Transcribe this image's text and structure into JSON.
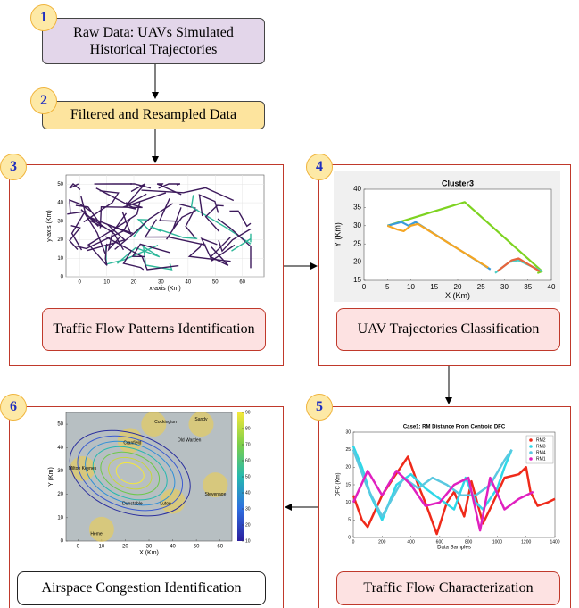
{
  "steps": [
    {
      "number": 1,
      "label": "Raw Data: UAVs Simulated Historical Trajectories"
    },
    {
      "number": 2,
      "label": "Filtered and Resampled Data"
    },
    {
      "number": 3,
      "label": "Traffic Flow Patterns Identification"
    },
    {
      "number": 4,
      "label": "UAV Trajectories Classification"
    },
    {
      "number": 5,
      "label": "Traffic Flow Characterization"
    },
    {
      "number": 6,
      "label": "Airspace Congestion Identification"
    }
  ],
  "charts": {
    "patterns": {
      "type": "line",
      "xlabel": "x-axis  (Km)",
      "ylabel": "y-axis  (Km)",
      "xlim": [
        -5,
        68
      ],
      "xticks": [
        0,
        10,
        20,
        30,
        40,
        50,
        60
      ],
      "ylim": [
        0,
        55
      ],
      "yticks": [
        0,
        10,
        20,
        30,
        40,
        50
      ],
      "grid": true
    },
    "cluster": {
      "type": "line",
      "title": "Cluster3",
      "xlabel": "X (Km)",
      "ylabel": "Y (Km)",
      "xlim": [
        0,
        40
      ],
      "xticks": [
        0,
        5,
        10,
        15,
        20,
        25,
        30,
        35,
        40
      ],
      "ylim": [
        15,
        40
      ],
      "yticks": [
        15,
        20,
        25,
        30,
        35,
        40
      ],
      "grid": false,
      "series": [
        {
          "color": "#7ed321",
          "x": [
            5,
            21.5,
            38,
            37
          ],
          "y": [
            30,
            36.5,
            17.5,
            17
          ]
        },
        {
          "color": "#3a9bdc",
          "x": [
            5,
            8,
            9.5,
            11,
            27
          ],
          "y": [
            30,
            31,
            30,
            31,
            18
          ]
        },
        {
          "color": "#f5a623",
          "x": [
            5,
            7,
            8.5,
            10,
            11.5,
            26.5
          ],
          "y": [
            30,
            29,
            28.5,
            30,
            30.5,
            18.5
          ]
        },
        {
          "color": "#4ecdc4",
          "x": [
            28,
            31,
            33,
            38
          ],
          "y": [
            17,
            20,
            20.5,
            17.5
          ]
        },
        {
          "color": "#e8643c",
          "x": [
            28.5,
            31.5,
            33,
            37.5
          ],
          "y": [
            17.5,
            20.5,
            21,
            17.5
          ]
        }
      ]
    },
    "dfc": {
      "type": "line",
      "title": "Case1: RM Distance From Centroid DFC",
      "xlabel": "Data Samples",
      "ylabel": "DFC (Km)",
      "xlim": [
        0,
        1400
      ],
      "xticks": [
        0,
        200,
        400,
        600,
        800,
        1000,
        1200,
        1400
      ],
      "ylim": [
        0,
        30
      ],
      "yticks": [
        0,
        5,
        10,
        15,
        20,
        25,
        30
      ],
      "grid": false,
      "legend": "upper right",
      "series": [
        {
          "name": "RM2",
          "color": "#ef2a1a",
          "x": [
            0,
            60,
            100,
            200,
            280,
            380,
            450,
            500,
            580,
            650,
            700,
            770,
            820,
            900,
            960,
            1050,
            1150,
            1200,
            1230,
            1280,
            1350,
            1400
          ],
          "y": [
            12,
            5,
            3,
            12,
            17,
            23,
            15,
            10,
            1,
            10,
            13,
            6,
            16,
            4,
            9,
            17,
            18,
            20,
            13,
            9,
            10,
            11
          ]
        },
        {
          "name": "RM3",
          "color": "#2fd8e8",
          "x": [
            0,
            60,
            120,
            200,
            300,
            400,
            500,
            600,
            700,
            780,
            850,
            900,
            1000,
            1050,
            1100
          ],
          "y": [
            26,
            20,
            12,
            5,
            15,
            18,
            14,
            11,
            8,
            17,
            10,
            8,
            14,
            20,
            25
          ]
        },
        {
          "name": "RM4",
          "color": "#5ac8e0",
          "x": [
            0,
            100,
            200,
            350,
            450,
            550,
            650,
            750,
            850,
            950,
            1050,
            1100
          ],
          "y": [
            25,
            14,
            6,
            17,
            14,
            17,
            15,
            12,
            12,
            15,
            22,
            25
          ]
        },
        {
          "name": "RM1",
          "color": "#e020c0",
          "x": [
            0,
            100,
            200,
            300,
            400,
            500,
            600,
            700,
            800,
            880,
            950,
            1050,
            1150,
            1250
          ],
          "y": [
            10,
            19,
            12,
            19,
            15,
            9,
            10,
            15,
            17,
            2,
            17,
            8,
            11,
            13
          ]
        }
      ]
    },
    "congestion": {
      "type": "contour",
      "xlabel": "X (Km)",
      "ylabel": "Y (Km)",
      "xlim": [
        -5,
        65
      ],
      "xticks": [
        0,
        10,
        20,
        30,
        40,
        50,
        60
      ],
      "ylim": [
        0,
        55
      ],
      "yticks": [
        0,
        10,
        20,
        30,
        40,
        50
      ],
      "clim": [
        10,
        90
      ],
      "cticks": [
        10,
        20,
        30,
        40,
        50,
        60,
        70,
        80,
        90
      ],
      "places": [
        {
          "name": "Cranfield",
          "x": 23,
          "y": 42
        },
        {
          "name": "Cockington",
          "x": 37,
          "y": 51
        },
        {
          "name": "Sandy",
          "x": 52,
          "y": 52
        },
        {
          "name": "Old Warden",
          "x": 47,
          "y": 43
        },
        {
          "name": "Milton Keynes",
          "x": 2,
          "y": 31
        },
        {
          "name": "Stevenage",
          "x": 58,
          "y": 20
        },
        {
          "name": "Dunstable",
          "x": 23,
          "y": 16
        },
        {
          "name": "Luton",
          "x": 37,
          "y": 16
        },
        {
          "name": "Hemel",
          "x": 8,
          "y": 3
        }
      ]
    }
  }
}
